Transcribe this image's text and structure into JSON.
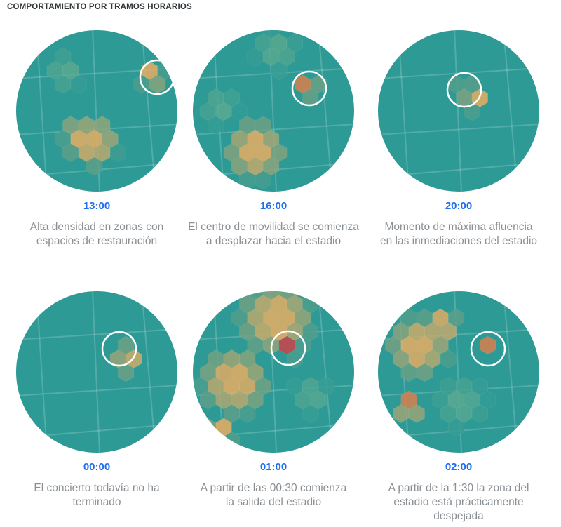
{
  "title": "COMPORTAMIENTO POR TRAMOS HORARIOS",
  "colors": {
    "teal": "#2e9a95",
    "low": "#5aa98f",
    "medium": "#e7ad62",
    "high": "#d87f4e",
    "peak": "#c9434b",
    "time": "#1f6ef0",
    "caption": "#8a8f94"
  },
  "panels": [
    {
      "time": "13:00",
      "lines": [
        "Alta densidad en zonas con",
        "espacios de restauración"
      ]
    },
    {
      "time": "16:00",
      "lines": [
        "El centro de movilidad se comienza",
        "a desplazar hacia el estadio"
      ]
    },
    {
      "time": "20:00",
      "lines": [
        "Momento  de máxima afluencia",
        "en las inmediaciones del estadio"
      ]
    },
    {
      "time": "00:00",
      "lines": [
        "El concierto todavía no ha",
        "terminado"
      ]
    },
    {
      "time": "01:00",
      "lines": [
        "A partir de las 00:30 comienza",
        "la salida del estadio"
      ]
    },
    {
      "time": "02:00",
      "lines": [
        "A partir de la 1:30 la zona del",
        "estadio está prácticamente",
        "despejada"
      ]
    }
  ]
}
